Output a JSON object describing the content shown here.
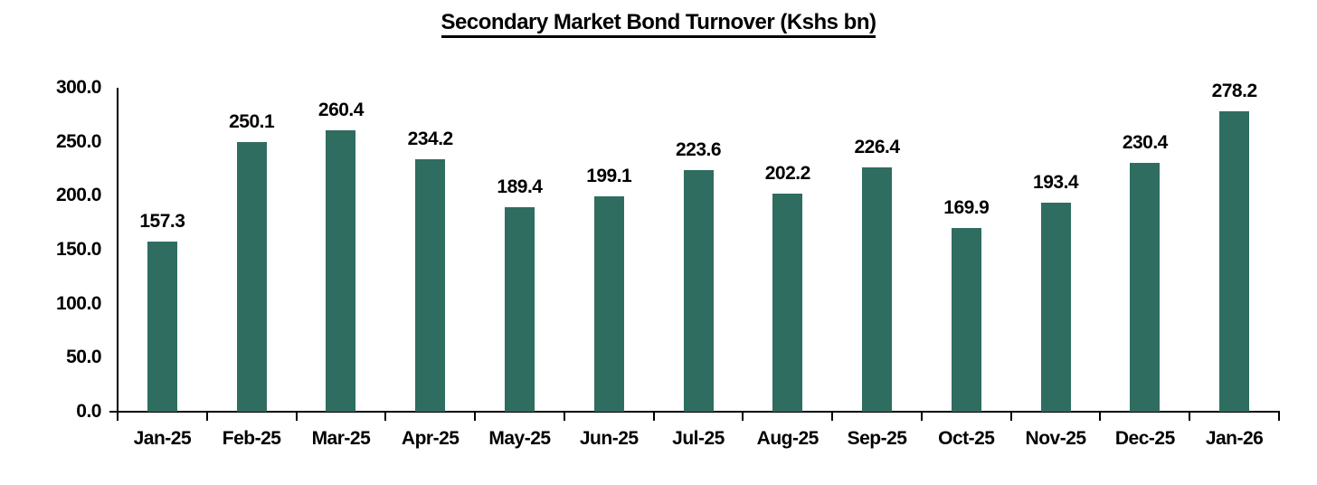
{
  "title": "Secondary Market Bond Turnover (Kshs bn)",
  "colors": {
    "bar": "#2E6D60",
    "axis": "#000000",
    "text": "#000000",
    "background": "#FFFFFF"
  },
  "chart_data": {
    "type": "bar",
    "title": "Secondary Market Bond Turnover (Kshs bn)",
    "categories": [
      "Jan-25",
      "Feb-25",
      "Mar-25",
      "Apr-25",
      "May-25",
      "Jun-25",
      "Jul-25",
      "Aug-25",
      "Sep-25",
      "Oct-25",
      "Nov-25",
      "Dec-25",
      "Jan-26"
    ],
    "values": [
      157.3,
      250.1,
      260.4,
      234.2,
      189.4,
      199.1,
      223.6,
      202.2,
      226.4,
      169.9,
      193.4,
      230.4,
      278.2
    ],
    "data_labels": [
      "157.3",
      "250.1",
      "260.4",
      "234.2",
      "189.4",
      "199.1",
      "223.6",
      "202.2",
      "226.4",
      "169.9",
      "193.4",
      "230.4",
      "278.2"
    ],
    "xlabel": "",
    "ylabel": "",
    "ylim": [
      0,
      300
    ],
    "ytick_interval": 50,
    "yticks": [
      "300.0",
      "250.0",
      "200.0",
      "150.0",
      "100.0",
      "50.0",
      "0.0"
    ],
    "grid": false,
    "legend": "none"
  }
}
